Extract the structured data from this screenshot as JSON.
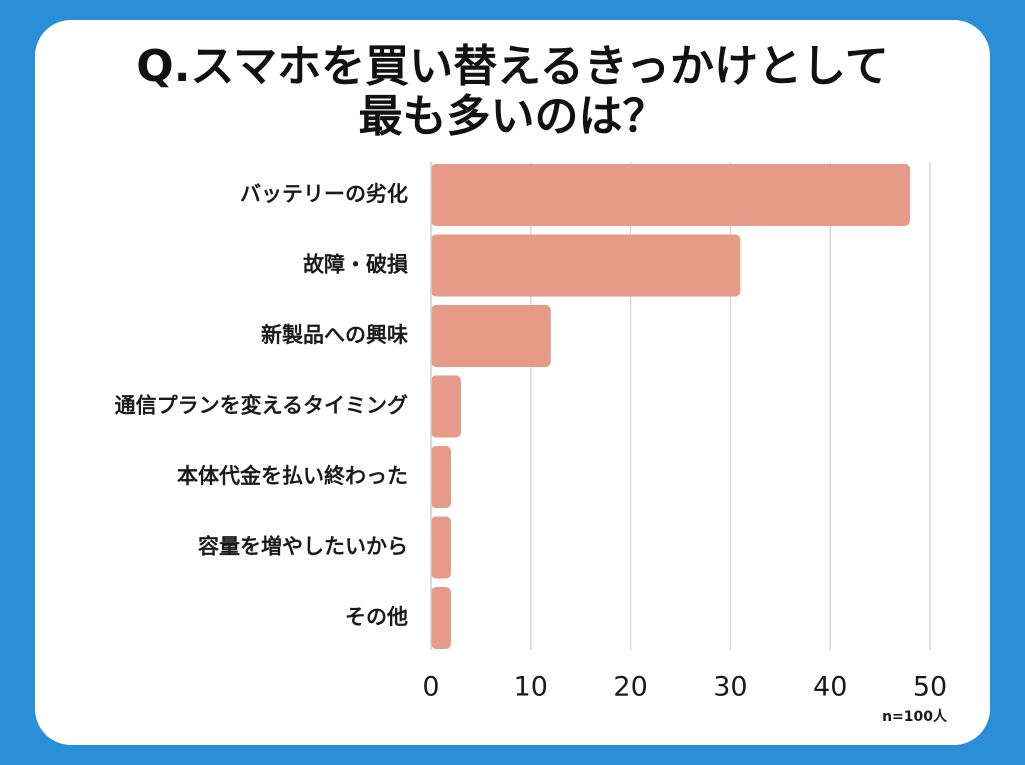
{
  "title_line1": "Q.スマホを買い替えるきっかけとして",
  "title_line2": "最も多いのは？",
  "sample_note": "n=100人",
  "colors": {
    "background": "#2b8fd8",
    "card": "#ffffff",
    "bar": "#e59b87",
    "grid": "#d9d9d9"
  },
  "chart_data": {
    "type": "bar",
    "orientation": "horizontal",
    "title": "Q.スマホを買い替えるきっかけとして最も多いのは？",
    "categories": [
      "バッテリーの劣化",
      "故障・破損",
      "新製品への興味",
      "通信プランを変えるタイミング",
      "本体代金を払い終わった",
      "容量を増やしたいから",
      "その他"
    ],
    "values": [
      48,
      31,
      12,
      3,
      2,
      2,
      2
    ],
    "xlim": [
      0,
      50
    ],
    "xticks": [
      0,
      10,
      20,
      30,
      40,
      50
    ],
    "xlabel": "",
    "ylabel": "",
    "grid": true,
    "annotation": "n=100人"
  }
}
